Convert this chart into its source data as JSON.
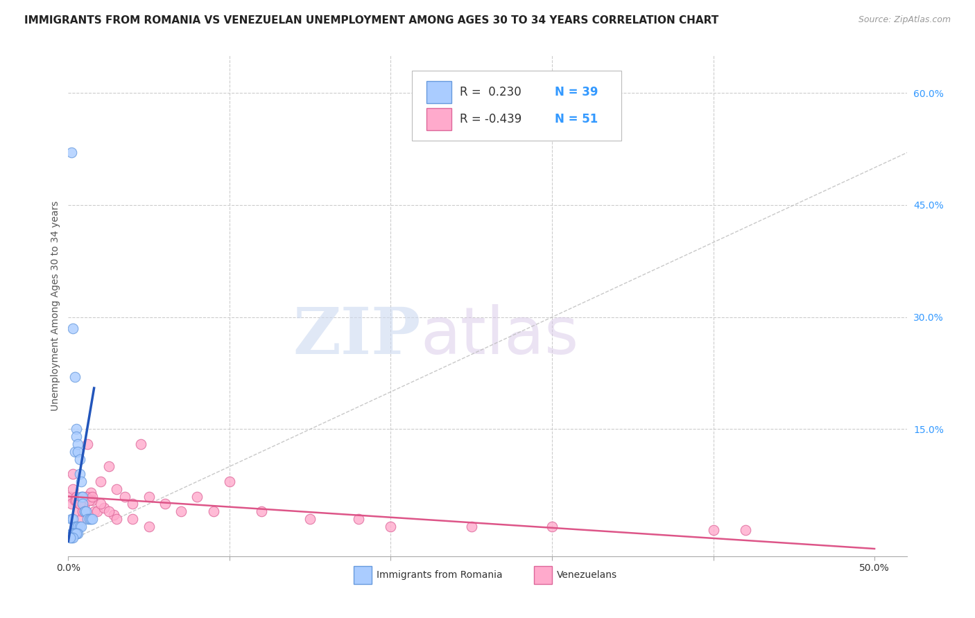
{
  "title": "IMMIGRANTS FROM ROMANIA VS VENEZUELAN UNEMPLOYMENT AMONG AGES 30 TO 34 YEARS CORRELATION CHART",
  "source": "Source: ZipAtlas.com",
  "ylabel": "Unemployment Among Ages 30 to 34 years",
  "xlim": [
    0.0,
    0.52
  ],
  "ylim": [
    -0.02,
    0.65
  ],
  "x_tick_labels": [
    "0.0%",
    "",
    "",
    "",
    "",
    "50.0%"
  ],
  "x_tick_vals": [
    0.0,
    0.1,
    0.2,
    0.3,
    0.4,
    0.5
  ],
  "y_tick_labels_right": [
    "60.0%",
    "45.0%",
    "30.0%",
    "15.0%"
  ],
  "y_tick_vals_right": [
    0.6,
    0.45,
    0.3,
    0.15
  ],
  "background_color": "#ffffff",
  "grid_color": "#cccccc",
  "watermark_zip": "ZIP",
  "watermark_atlas": "atlas",
  "romania_color": "#aaccff",
  "venezuela_color": "#ffaacc",
  "romania_edge_color": "#6699dd",
  "venezuela_edge_color": "#dd6699",
  "romania_R": 0.23,
  "romania_N": 39,
  "venezuela_R": -0.439,
  "venezuela_N": 51,
  "romania_line_color": "#2255bb",
  "venezuela_line_color": "#dd5588",
  "diagonal_color": "#bbbbbb",
  "romania_scatter_x": [
    0.002,
    0.003,
    0.004,
    0.004,
    0.005,
    0.005,
    0.006,
    0.006,
    0.007,
    0.007,
    0.008,
    0.008,
    0.009,
    0.009,
    0.01,
    0.01,
    0.011,
    0.012,
    0.013,
    0.014,
    0.015,
    0.002,
    0.003,
    0.004,
    0.005,
    0.006,
    0.007,
    0.008,
    0.003,
    0.004,
    0.005,
    0.006,
    0.002,
    0.003,
    0.004,
    0.005,
    0.002,
    0.003,
    0.001
  ],
  "romania_scatter_y": [
    0.52,
    0.285,
    0.22,
    0.12,
    0.15,
    0.14,
    0.13,
    0.12,
    0.11,
    0.09,
    0.08,
    0.06,
    0.06,
    0.05,
    0.04,
    0.04,
    0.04,
    0.03,
    0.03,
    0.03,
    0.03,
    0.03,
    0.03,
    0.02,
    0.02,
    0.02,
    0.02,
    0.02,
    0.01,
    0.01,
    0.01,
    0.01,
    0.01,
    0.01,
    0.01,
    0.01,
    0.005,
    0.005,
    0.005
  ],
  "venezuela_scatter_x": [
    0.001,
    0.002,
    0.003,
    0.004,
    0.005,
    0.006,
    0.007,
    0.008,
    0.009,
    0.01,
    0.011,
    0.012,
    0.013,
    0.014,
    0.015,
    0.016,
    0.018,
    0.02,
    0.022,
    0.025,
    0.028,
    0.03,
    0.035,
    0.04,
    0.045,
    0.05,
    0.06,
    0.07,
    0.08,
    0.09,
    0.1,
    0.12,
    0.15,
    0.18,
    0.2,
    0.25,
    0.3,
    0.4,
    0.42,
    0.003,
    0.005,
    0.007,
    0.009,
    0.011,
    0.013,
    0.015,
    0.02,
    0.025,
    0.03,
    0.04,
    0.05
  ],
  "venezuela_scatter_y": [
    0.06,
    0.05,
    0.07,
    0.055,
    0.06,
    0.04,
    0.05,
    0.03,
    0.04,
    0.05,
    0.04,
    0.13,
    0.06,
    0.065,
    0.055,
    0.04,
    0.04,
    0.08,
    0.045,
    0.1,
    0.035,
    0.07,
    0.06,
    0.05,
    0.13,
    0.06,
    0.05,
    0.04,
    0.06,
    0.04,
    0.08,
    0.04,
    0.03,
    0.03,
    0.02,
    0.02,
    0.02,
    0.015,
    0.015,
    0.09,
    0.055,
    0.05,
    0.06,
    0.06,
    0.055,
    0.06,
    0.05,
    0.04,
    0.03,
    0.03,
    0.02
  ],
  "rom_line_x0": 0.0,
  "rom_line_y0": 0.0,
  "rom_line_x1": 0.016,
  "rom_line_y1": 0.205,
  "ven_line_x0": 0.0,
  "ven_line_y0": 0.06,
  "ven_line_x1": 0.5,
  "ven_line_y1": -0.01,
  "title_fontsize": 11,
  "source_fontsize": 9,
  "ylabel_fontsize": 10,
  "legend_fontsize": 11,
  "tick_fontsize": 10,
  "marker_size": 110
}
